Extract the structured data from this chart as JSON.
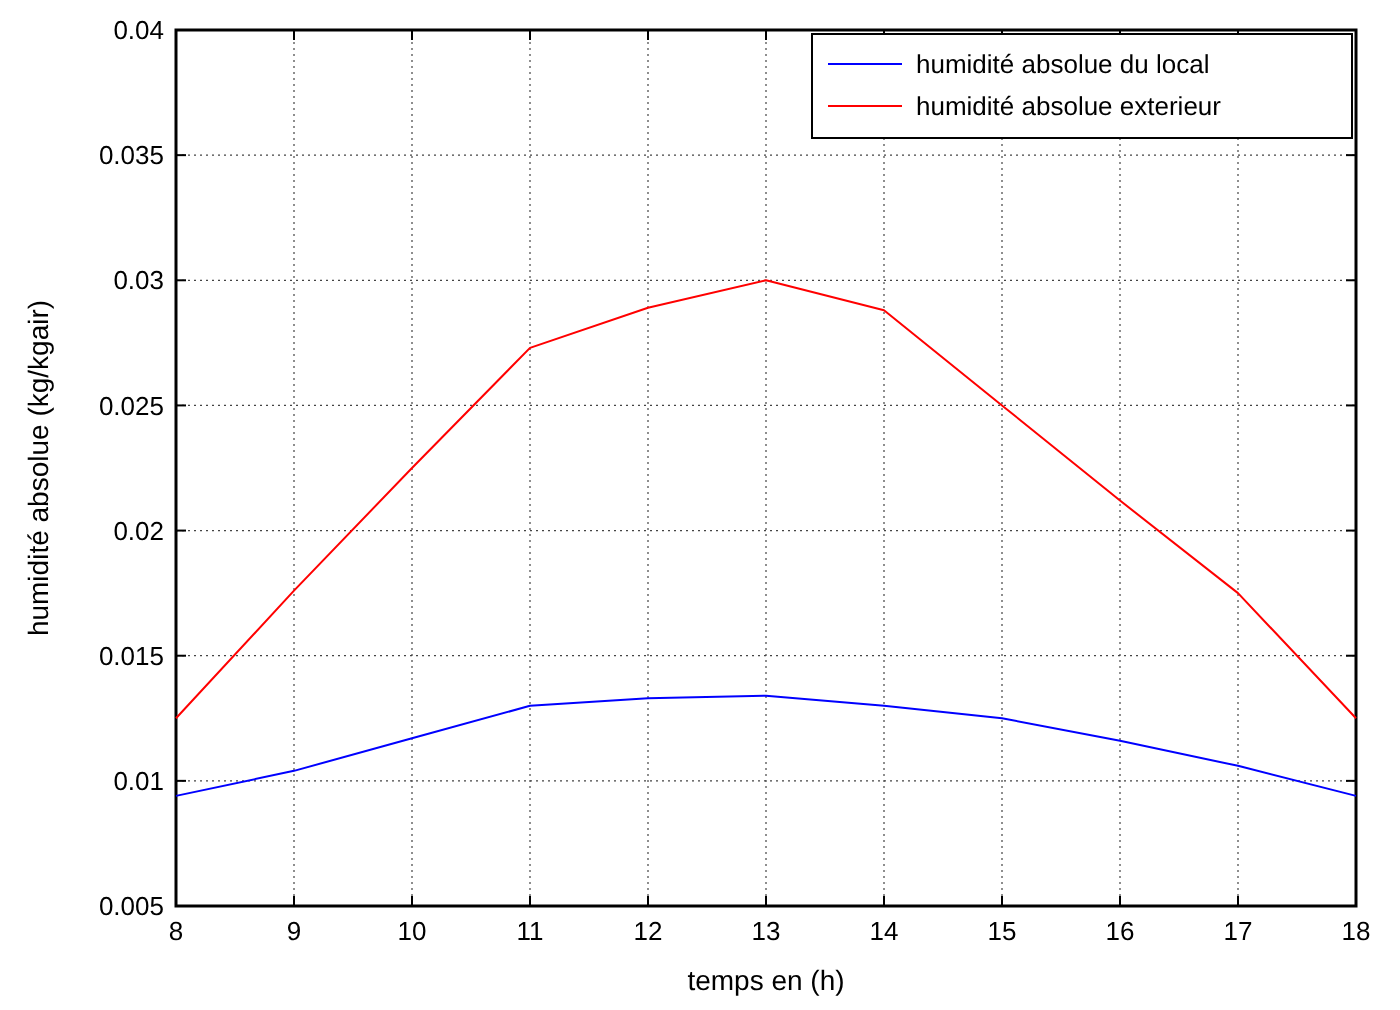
{
  "chart_data": {
    "type": "line",
    "xlabel": "temps en (h)",
    "ylabel": "humidité absolue (kg/kgair)",
    "x": [
      8,
      9,
      10,
      11,
      12,
      13,
      14,
      15,
      16,
      17,
      18
    ],
    "series": [
      {
        "name": "humidité absolue du local",
        "color": "#0000ff",
        "values": [
          0.0094,
          0.0104,
          0.0117,
          0.013,
          0.0133,
          0.0134,
          0.013,
          0.0125,
          0.0116,
          0.0106,
          0.0094
        ]
      },
      {
        "name": "humidité absolue exterieur",
        "color": "#ff0000",
        "values": [
          0.0125,
          0.0176,
          0.0225,
          0.0273,
          0.0289,
          0.03,
          0.0288,
          0.025,
          0.0212,
          0.0175,
          0.0125
        ]
      }
    ],
    "xlim": [
      8,
      18
    ],
    "xticks": [
      8,
      9,
      10,
      11,
      12,
      13,
      14,
      15,
      16,
      17,
      18
    ],
    "ylim": [
      0.005,
      0.04
    ],
    "yticks": [
      0.005,
      0.01,
      0.015,
      0.02,
      0.025,
      0.03,
      0.035,
      0.04
    ],
    "grid": true,
    "legend": "top right",
    "marker": "none",
    "line_style": "solid"
  }
}
